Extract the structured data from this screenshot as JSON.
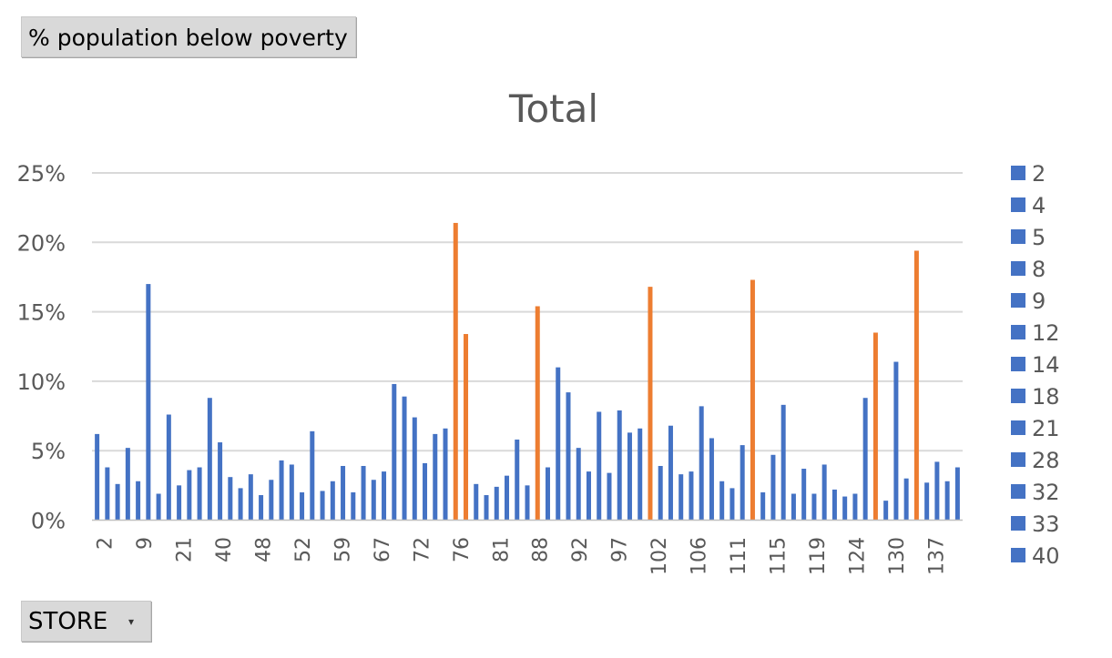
{
  "pivot": {
    "value_field": "% population below poverty",
    "axis_field": "STORE"
  },
  "chart_data": {
    "type": "bar",
    "title": "Total",
    "ylim": [
      0,
      0.25
    ],
    "yticks": [
      "0%",
      "5%",
      "10%",
      "15%",
      "20%",
      "25%"
    ],
    "ytick_values": [
      0,
      0.05,
      0.1,
      0.15,
      0.2,
      0.25
    ],
    "grid": true,
    "legend_position": "right",
    "colors": {
      "default": "#4472c4",
      "highlight": "#ed7d31"
    },
    "x_labels": [
      "2",
      "9",
      "21",
      "40",
      "48",
      "52",
      "59",
      "67",
      "72",
      "76",
      "81",
      "88",
      "92",
      "97",
      "102",
      "106",
      "111",
      "115",
      "119",
      "124",
      "130",
      "137"
    ],
    "values": [
      0.062,
      0.038,
      0.026,
      0.052,
      0.028,
      0.17,
      0.019,
      0.076,
      0.025,
      0.036,
      0.038,
      0.088,
      0.056,
      0.031,
      0.023,
      0.033,
      0.018,
      0.029,
      0.043,
      0.04,
      0.02,
      0.064,
      0.021,
      0.028,
      0.039,
      0.02,
      0.039,
      0.029,
      0.035,
      0.098,
      0.089,
      0.074,
      0.041,
      0.062,
      0.066,
      0.214,
      0.134,
      0.026,
      0.018,
      0.024,
      0.032,
      0.058,
      0.025,
      0.154,
      0.038,
      0.11,
      0.092,
      0.052,
      0.035,
      0.078,
      0.034,
      0.079,
      0.063,
      0.066,
      0.168,
      0.039,
      0.068,
      0.033,
      0.035,
      0.082,
      0.059,
      0.028,
      0.023,
      0.054,
      0.173,
      0.02,
      0.047,
      0.083,
      0.019,
      0.037,
      0.019,
      0.04,
      0.022,
      0.017,
      0.019,
      0.088,
      0.135,
      0.014,
      0.114,
      0.03,
      0.194,
      0.027,
      0.042,
      0.028,
      0.038
    ],
    "highlight_indices": [
      35,
      36,
      43,
      54,
      64,
      76,
      80
    ],
    "legend_entries": [
      "2",
      "4",
      "5",
      "8",
      "9",
      "12",
      "14",
      "18",
      "21",
      "28",
      "32",
      "33",
      "40"
    ]
  }
}
